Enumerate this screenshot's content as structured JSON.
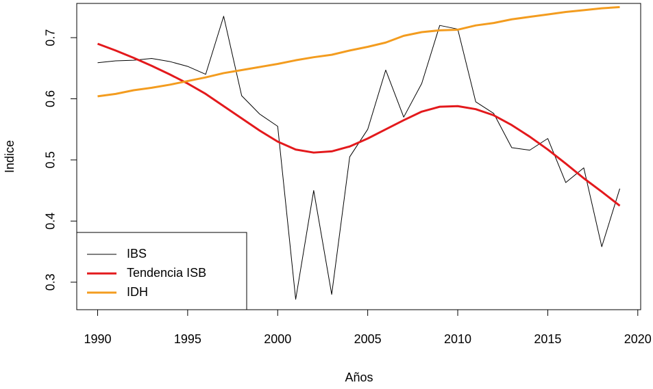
{
  "chart_data": {
    "type": "line",
    "x_label": "Años",
    "y_label": "Indice",
    "x": [
      1990,
      1991,
      1992,
      1993,
      1994,
      1995,
      1996,
      1997,
      1998,
      1999,
      2000,
      2001,
      2002,
      2003,
      2004,
      2005,
      2006,
      2007,
      2008,
      2009,
      2010,
      2011,
      2012,
      2013,
      2014,
      2015,
      2016,
      2017,
      2018,
      2019
    ],
    "series": [
      {
        "name": "IBS",
        "color": "#000000",
        "width": 1,
        "values": [
          0.659,
          0.662,
          0.663,
          0.666,
          0.661,
          0.653,
          0.64,
          0.735,
          0.605,
          0.575,
          0.555,
          0.272,
          0.45,
          0.28,
          0.505,
          0.55,
          0.647,
          0.57,
          0.625,
          0.72,
          0.714,
          0.595,
          0.576,
          0.52,
          0.516,
          0.535,
          0.463,
          0.487,
          0.358,
          0.453
        ]
      },
      {
        "name": "Tendencia ISB",
        "color": "#e3191c",
        "width": 3,
        "values": [
          0.69,
          0.679,
          0.667,
          0.654,
          0.64,
          0.625,
          0.608,
          0.588,
          0.568,
          0.548,
          0.53,
          0.517,
          0.512,
          0.514,
          0.522,
          0.535,
          0.55,
          0.565,
          0.579,
          0.587,
          0.588,
          0.583,
          0.573,
          0.557,
          0.538,
          0.517,
          0.494,
          0.47,
          0.448,
          0.425
        ]
      },
      {
        "name": "IDH",
        "color": "#f39c1f",
        "width": 3,
        "values": [
          0.604,
          0.608,
          0.614,
          0.618,
          0.623,
          0.629,
          0.635,
          0.642,
          0.647,
          0.652,
          0.657,
          0.663,
          0.668,
          0.672,
          0.679,
          0.685,
          0.692,
          0.703,
          0.709,
          0.712,
          0.713,
          0.72,
          0.724,
          0.73,
          0.734,
          0.738,
          0.742,
          0.745,
          0.748,
          0.75
        ]
      }
    ],
    "xlim": [
      1988.84,
      2020.16
    ],
    "xticks": [
      1990,
      1995,
      2000,
      2005,
      2010,
      2015,
      2020
    ],
    "ylim": [
      0.255,
      0.756
    ],
    "yticks": [
      0.3,
      0.4,
      0.5,
      0.6,
      0.7
    ],
    "legend": "bottomleft"
  }
}
